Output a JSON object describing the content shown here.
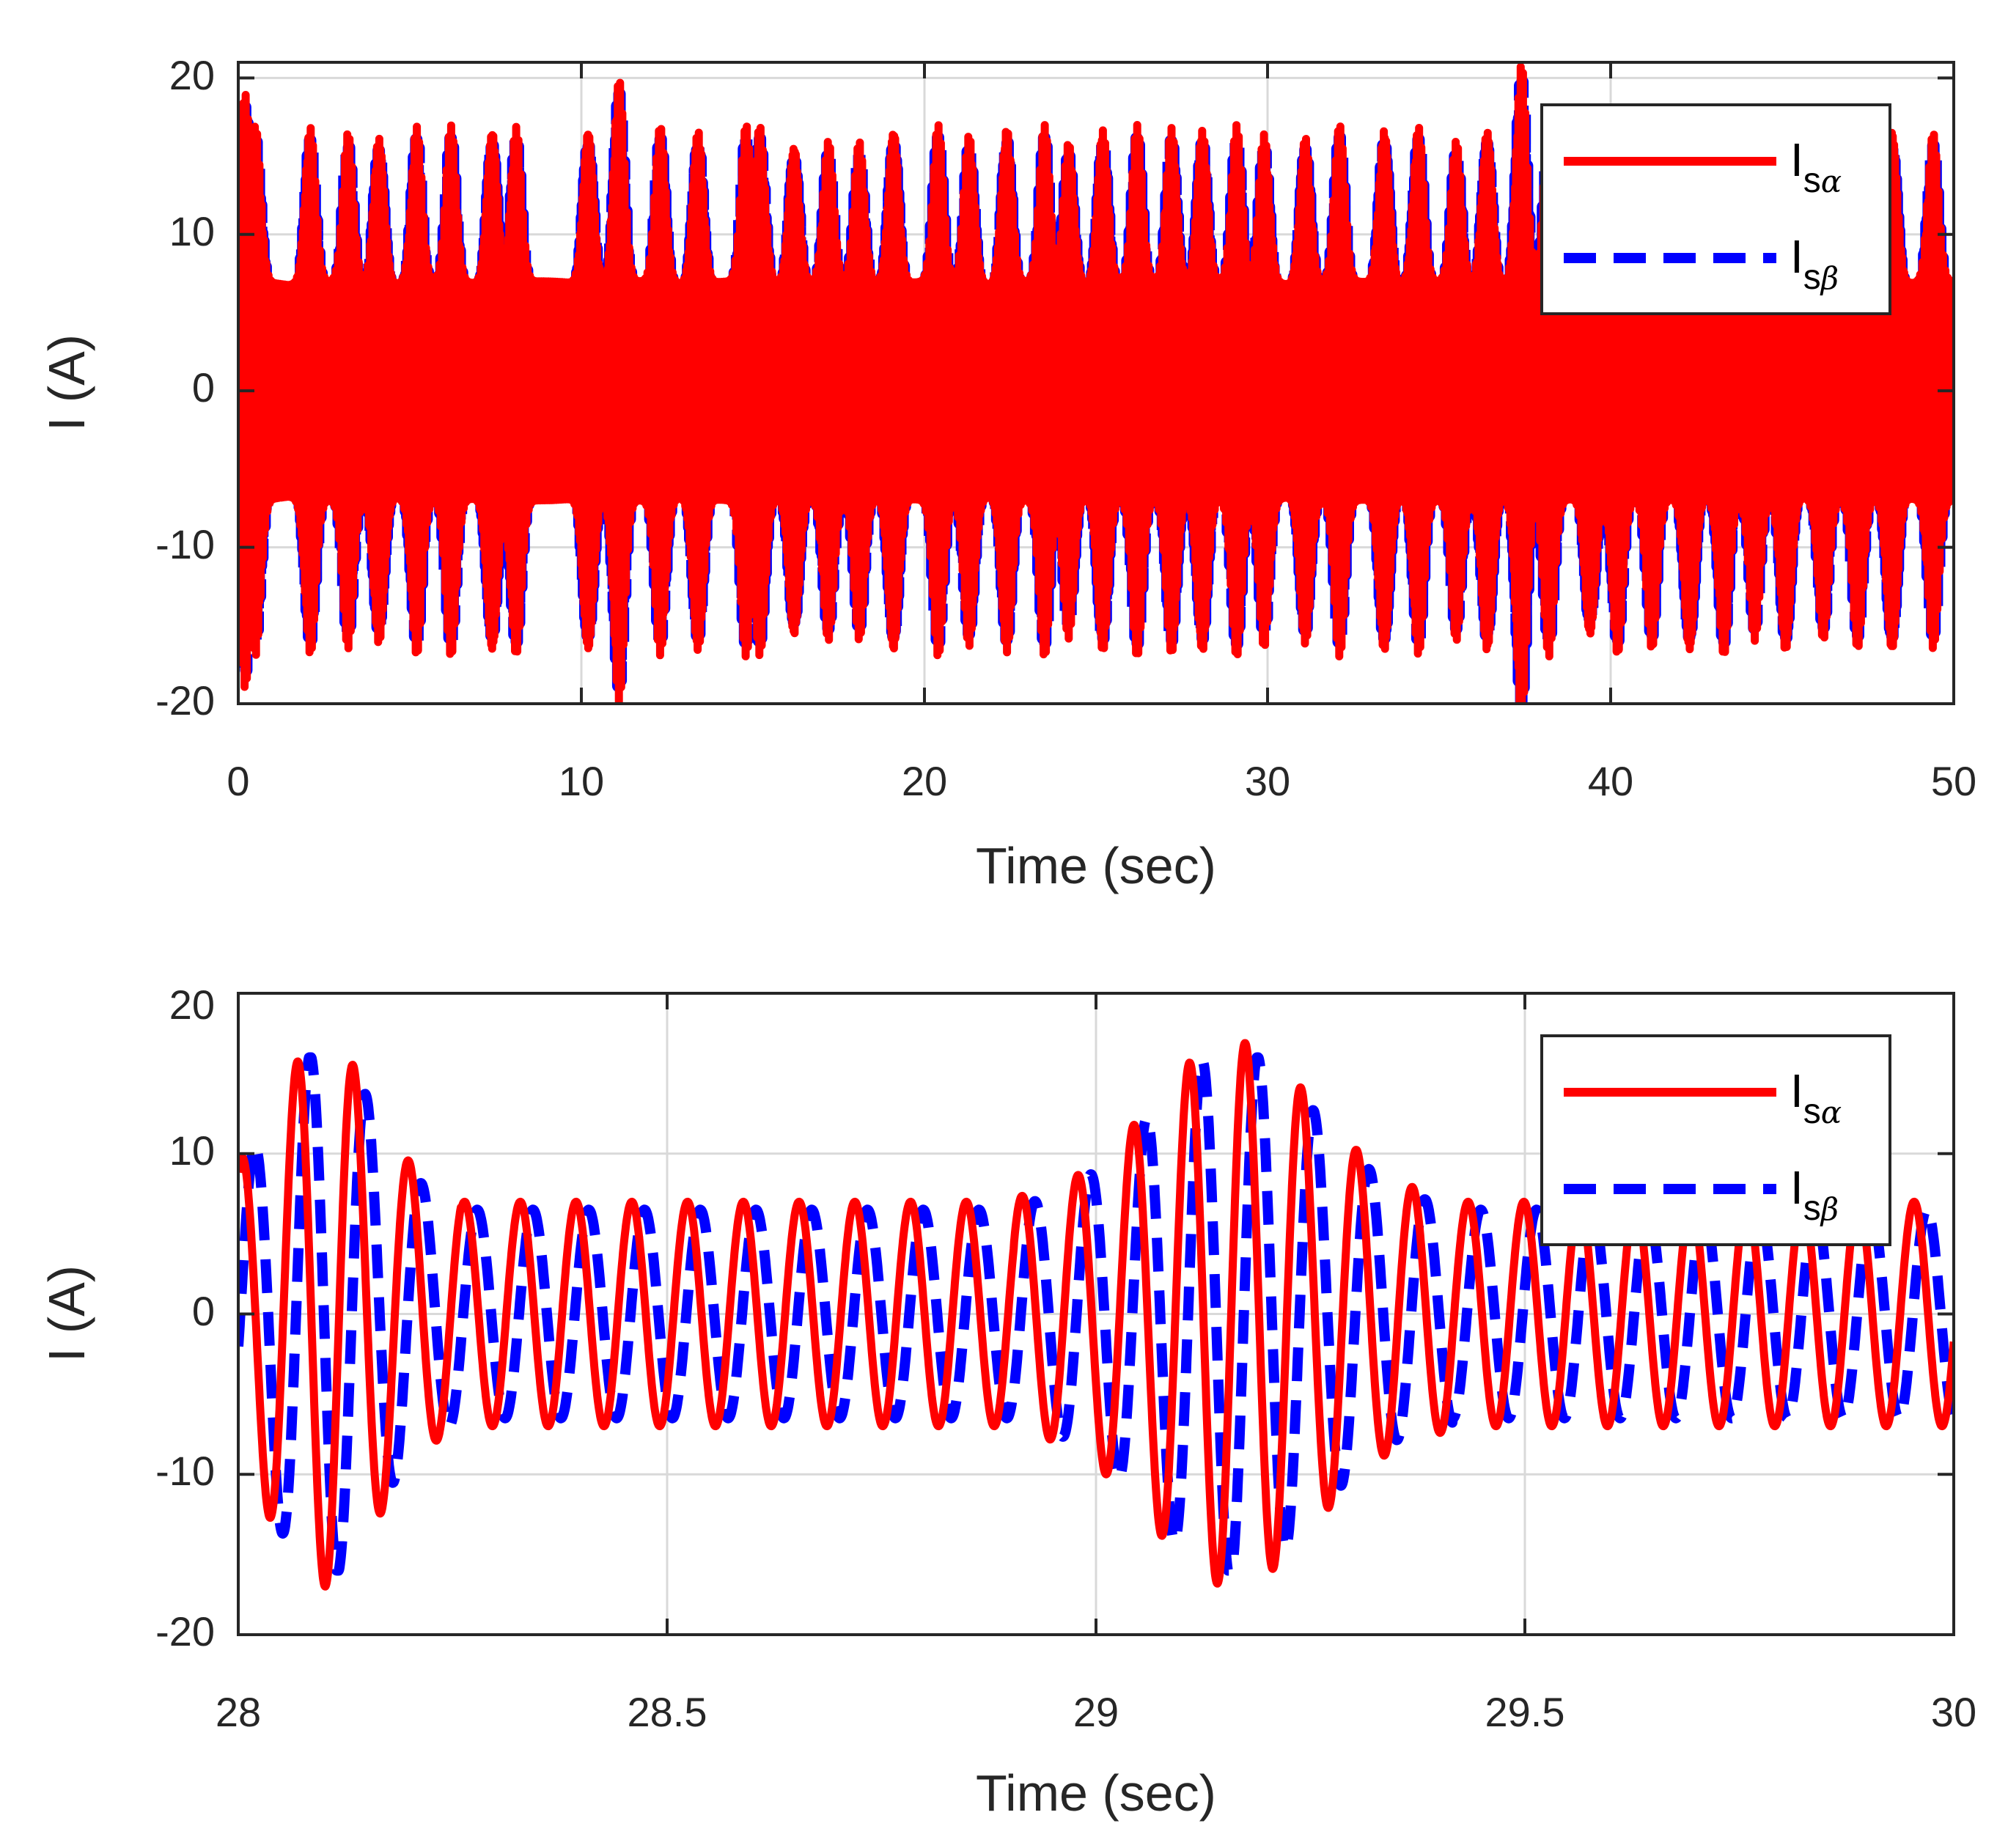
{
  "colors": {
    "alpha": "#ff0000",
    "beta": "#0000ff",
    "grid": "#d9d9d9",
    "axis": "#262626"
  },
  "chart_data": [
    {
      "type": "line",
      "xlabel": "Time (sec)",
      "ylabel": "I (A)",
      "xlim": [
        0,
        50
      ],
      "ylim": [
        -20,
        21
      ],
      "xticks": [
        0,
        10,
        20,
        30,
        40,
        50
      ],
      "xtick_labels": [
        "0",
        "10",
        "20",
        "30",
        "40",
        "50"
      ],
      "yticks": [
        -20,
        -10,
        0,
        10,
        20
      ],
      "ytick_labels": [
        "-20",
        "-10",
        "0",
        "10",
        "20"
      ],
      "grid": true,
      "legend_position": "top-right",
      "series": [
        {
          "name": "Isα",
          "legend_main": "I",
          "legend_sub": "s",
          "legend_greek": "α",
          "style": "solid",
          "color": "#ff0000",
          "baseline_amplitude": 7,
          "peak_amplitude": 17
        },
        {
          "name": "Isβ",
          "legend_main": "I",
          "legend_sub": "s",
          "legend_greek": "β",
          "style": "dashed",
          "color": "#0000ff",
          "baseline_amplitude": 6.5,
          "peak_amplitude": 16.5
        }
      ],
      "burst_times": [
        0.2,
        0.5,
        2.1,
        3.2,
        4.1,
        5.2,
        6.2,
        7.4,
        8.1,
        10.2,
        11.1,
        12.3,
        13.4,
        14.8,
        15.2,
        16.2,
        17.2,
        18.1,
        19.1,
        20.4,
        21.3,
        22.4,
        23.5,
        24.2,
        25.2,
        26.2,
        27.2,
        28.1,
        29.1,
        29.9,
        31.1,
        32.1,
        33.4,
        34.4,
        35.5,
        36.4,
        37.4,
        38.2,
        39.4,
        40.2,
        41.2,
        42.3,
        43.3,
        44.2,
        45.1,
        46.2,
        47.2,
        48.2,
        49.4
      ],
      "burst_peaks": [
        19,
        17,
        17,
        16.5,
        16.5,
        17,
        17,
        17,
        17,
        17,
        20,
        17,
        17,
        17,
        17,
        16,
        16,
        16,
        17,
        17,
        16.5,
        17,
        17,
        16,
        17,
        17,
        17,
        17,
        17,
        16.5,
        16.5,
        17,
        17,
        17,
        16,
        17,
        21,
        17,
        16,
        17,
        16.5,
        17,
        17,
        16,
        17,
        16,
        16.5,
        17,
        16.5
      ]
    },
    {
      "type": "line",
      "xlabel": "Time (sec)",
      "ylabel": "I (A)",
      "xlim": [
        28,
        30
      ],
      "ylim": [
        -20,
        20
      ],
      "xticks": [
        28,
        28.5,
        29,
        29.5,
        30
      ],
      "xtick_labels": [
        "28",
        "28.5",
        "29",
        "29.5",
        "30"
      ],
      "yticks": [
        -20,
        -10,
        0,
        10,
        20
      ],
      "ytick_labels": [
        "-20",
        "-10",
        "0",
        "10",
        "20"
      ],
      "grid": true,
      "legend_position": "top-right",
      "series": [
        {
          "name": "Isα",
          "legend_main": "I",
          "legend_sub": "s",
          "legend_greek": "α",
          "style": "solid",
          "color": "#ff0000",
          "baseline_amplitude": 7,
          "peak_amplitude": 17
        },
        {
          "name": "Isβ",
          "legend_main": "I",
          "legend_sub": "s",
          "legend_greek": "β",
          "style": "dashed",
          "color": "#0000ff",
          "baseline_amplitude": 6.5,
          "peak_amplitude": 16.5
        }
      ],
      "oscillation_period": 0.065,
      "transient_intervals": [
        [
          28.0,
          28.2
        ],
        [
          29.0,
          29.32
        ]
      ]
    }
  ]
}
